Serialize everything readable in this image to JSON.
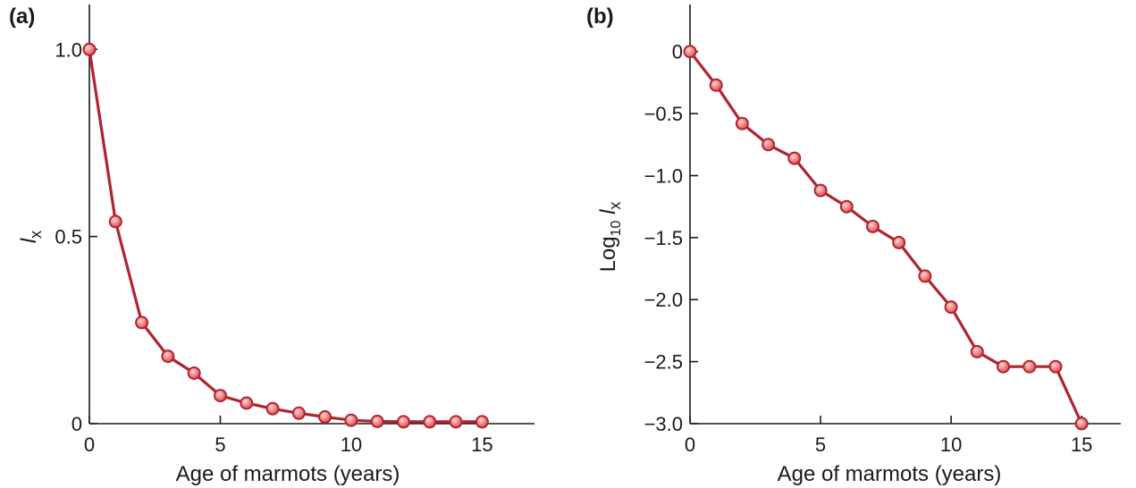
{
  "chart_data": [
    {
      "type": "line",
      "panel_label": "(a)",
      "xlabel": "Age of marmots (years)",
      "ylabel_main": "l",
      "ylabel_sub": "x",
      "xlim": [
        0,
        17
      ],
      "ylim": [
        0,
        1.12
      ],
      "xticks": [
        0,
        5,
        10,
        15
      ],
      "xtick_labels": [
        "0",
        "5",
        "10",
        "15"
      ],
      "yticks": [
        0,
        0.5,
        1.0
      ],
      "ytick_labels": [
        "0",
        "0.5",
        "1.0"
      ],
      "x": [
        0,
        1,
        2,
        3,
        4,
        5,
        6,
        7,
        8,
        9,
        10,
        11,
        12,
        13,
        14,
        15
      ],
      "series": [
        {
          "values": [
            1.0,
            0.54,
            0.27,
            0.18,
            0.135,
            0.075,
            0.055,
            0.04,
            0.028,
            0.018,
            0.009,
            0.006,
            0.005,
            0.005,
            0.005,
            0.005
          ],
          "color": "#b0242f",
          "marker_fill": "#f08a8a"
        }
      ]
    },
    {
      "type": "line",
      "panel_label": "(b)",
      "xlabel": "Age of marmots (years)",
      "ylabel_main": "Log",
      "ylabel_sub": "10",
      "ylabel_main2": "l",
      "ylabel_sub2": "x",
      "xlim": [
        0,
        16.5
      ],
      "ylim": [
        -3.0,
        0.38
      ],
      "xticks": [
        0,
        5,
        10,
        15
      ],
      "xtick_labels": [
        "0",
        "5",
        "10",
        "15"
      ],
      "yticks": [
        0,
        -0.5,
        -1.0,
        -1.5,
        -2.0,
        -2.5,
        -3.0
      ],
      "ytick_labels": [
        "0",
        "−0.5",
        "−1.0",
        "−1.5",
        "−2.0",
        "−2.5",
        "−3.0"
      ],
      "x": [
        0,
        1,
        2,
        3,
        4,
        5,
        6,
        7,
        8,
        9,
        10,
        11,
        12,
        13,
        14,
        15
      ],
      "series": [
        {
          "values": [
            0,
            -0.27,
            -0.58,
            -0.75,
            -0.86,
            -1.12,
            -1.25,
            -1.41,
            -1.54,
            -1.81,
            -2.06,
            -2.42,
            -2.54,
            -2.54,
            -2.54,
            -3.0
          ],
          "color": "#b0242f",
          "marker_fill": "#f08a8a"
        }
      ]
    }
  ]
}
